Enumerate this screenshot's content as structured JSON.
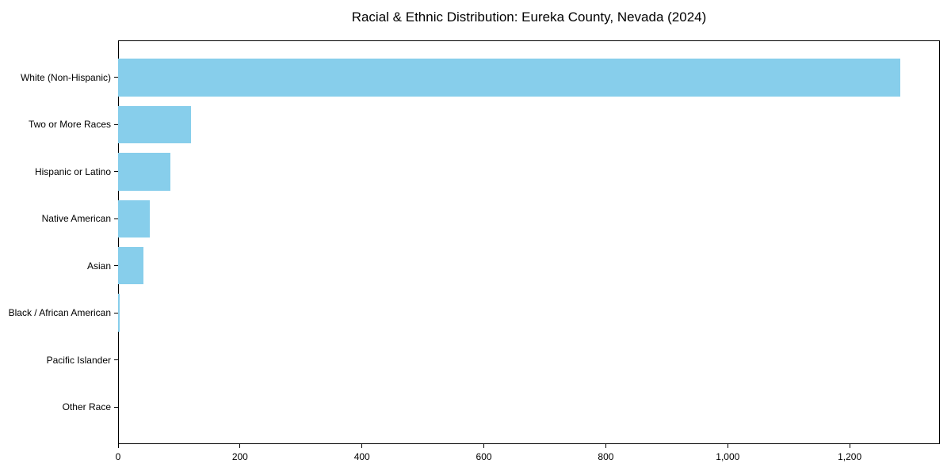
{
  "chart_data": {
    "type": "bar",
    "orientation": "horizontal",
    "title": "Racial & Ethnic Distribution: Eureka County, Nevada (2024)",
    "categories": [
      "White (Non-Hispanic)",
      "Two or More Races",
      "Hispanic or Latino",
      "Native American",
      "Asian",
      "Black / African American",
      "Pacific Islander",
      "Other Race"
    ],
    "values": [
      1283,
      119,
      86,
      52,
      42,
      2,
      0,
      0
    ],
    "xlabel": "",
    "ylabel": "",
    "xlim": [
      0,
      1348
    ],
    "x_ticks": [
      {
        "value": 0,
        "label": "0"
      },
      {
        "value": 200,
        "label": "200"
      },
      {
        "value": 400,
        "label": "400"
      },
      {
        "value": 600,
        "label": "600"
      },
      {
        "value": 800,
        "label": "800"
      },
      {
        "value": 1000,
        "label": "1,000"
      },
      {
        "value": 1200,
        "label": "1,200"
      }
    ],
    "grid": false,
    "legend": null,
    "bar_color": "#87CEEB",
    "axis_color": "#000000",
    "text_color": "#000000",
    "background_color": "#ffffff"
  }
}
